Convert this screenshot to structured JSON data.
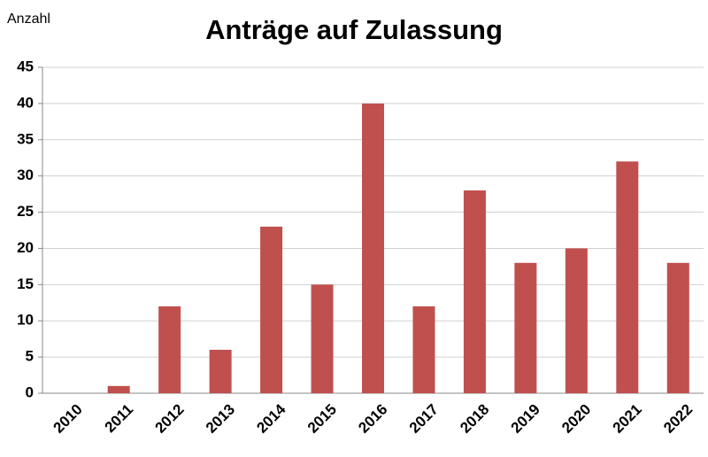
{
  "chart_data": {
    "type": "bar",
    "title": "Anträge auf Zulassung",
    "y_label": "Anzahl",
    "categories": [
      "2010",
      "2011",
      "2012",
      "2013",
      "2014",
      "2015",
      "2016",
      "2017",
      "2018",
      "2019",
      "2020",
      "2021",
      "2022"
    ],
    "values": [
      0,
      1,
      12,
      6,
      23,
      15,
      40,
      12,
      28,
      18,
      20,
      32,
      18
    ],
    "color": "#c0504d",
    "ylim": [
      0,
      45
    ],
    "yticks": [
      0,
      5,
      10,
      15,
      20,
      25,
      30,
      35,
      40,
      45
    ],
    "grid": true
  }
}
